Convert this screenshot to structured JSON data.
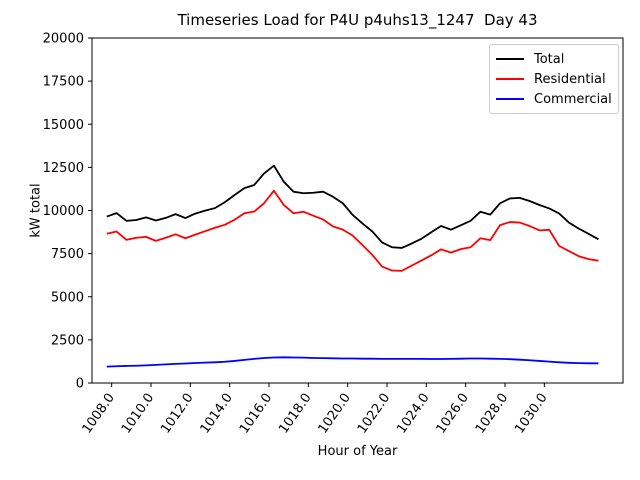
{
  "window": {
    "background": "#ffffff"
  },
  "chart_data": {
    "type": "line",
    "title": "Timeseries Load for P4U p4uhs13_1247  Day 43",
    "xlabel": "Hour of Year",
    "ylabel": "kW total",
    "xlim": [
      1007,
      1034
    ],
    "ylim": [
      0,
      20000
    ],
    "grid": false,
    "legend_position": "upper right",
    "x_tick_values": [
      1008,
      1010,
      1012,
      1014,
      1016,
      1018,
      1020,
      1022,
      1024,
      1026,
      1028,
      1030
    ],
    "x_tick_labels": [
      "1008.0",
      "1010.0",
      "1012.0",
      "1014.0",
      "1016.0",
      "1018.0",
      "1020.0",
      "1022.0",
      "1024.0",
      "1026.0",
      "1028.0",
      "1030.0"
    ],
    "y_tick_values": [
      0,
      2500,
      5000,
      7500,
      10000,
      12500,
      15000,
      17500,
      20000
    ],
    "y_tick_labels": [
      "0",
      "2500",
      "5000",
      "7500",
      "10000",
      "12500",
      "15000",
      "17500",
      "20000"
    ],
    "x": [
      1007.75,
      1008.25,
      1008.75,
      1009.25,
      1009.75,
      1010.25,
      1010.75,
      1011.25,
      1011.75,
      1012.25,
      1012.75,
      1013.25,
      1013.75,
      1014.25,
      1014.75,
      1015.25,
      1015.75,
      1016.25,
      1016.75,
      1017.25,
      1017.75,
      1018.25,
      1018.75,
      1019.25,
      1019.75,
      1020.25,
      1020.75,
      1021.25,
      1021.75,
      1022.25,
      1022.75,
      1023.25,
      1023.75,
      1024.25,
      1024.75,
      1025.25,
      1025.75,
      1026.25,
      1026.75,
      1027.25,
      1027.75,
      1028.25,
      1028.75,
      1029.25,
      1029.75,
      1030.25,
      1030.75,
      1031.25,
      1031.75,
      1032.25,
      1032.75
    ],
    "series": [
      {
        "name": "Total",
        "color": "#000000",
        "values": [
          9650,
          9850,
          9400,
          9450,
          9600,
          9420,
          9570,
          9790,
          9560,
          9820,
          9990,
          10140,
          10480,
          10900,
          11300,
          11480,
          12150,
          12600,
          11670,
          11090,
          11000,
          11030,
          11090,
          10800,
          10420,
          9750,
          9250,
          8790,
          8150,
          7870,
          7830,
          8080,
          8360,
          8740,
          9100,
          8890,
          9140,
          9400,
          9930,
          9760,
          10420,
          10700,
          10730,
          10550,
          10320,
          10120,
          9830,
          9300,
          8950,
          8650,
          8330
        ]
      },
      {
        "name": "Residential",
        "color": "#ff0000",
        "values": [
          8650,
          8780,
          8300,
          8420,
          8470,
          8240,
          8420,
          8620,
          8390,
          8600,
          8800,
          9000,
          9170,
          9460,
          9840,
          9940,
          10420,
          11150,
          10320,
          9840,
          9930,
          9700,
          9480,
          9080,
          8890,
          8550,
          8000,
          7430,
          6750,
          6520,
          6500,
          6800,
          7100,
          7400,
          7750,
          7560,
          7760,
          7870,
          8390,
          8280,
          9150,
          9330,
          9300,
          9100,
          8850,
          8880,
          7950,
          7650,
          7350,
          7180,
          7090
        ]
      },
      {
        "name": "Commercial",
        "color": "#0000ff",
        "values": [
          950,
          970,
          990,
          1000,
          1020,
          1050,
          1080,
          1110,
          1130,
          1160,
          1180,
          1200,
          1230,
          1280,
          1340,
          1400,
          1450,
          1480,
          1490,
          1480,
          1470,
          1450,
          1440,
          1430,
          1420,
          1420,
          1410,
          1410,
          1400,
          1400,
          1400,
          1400,
          1400,
          1390,
          1390,
          1400,
          1410,
          1420,
          1420,
          1410,
          1400,
          1380,
          1350,
          1320,
          1280,
          1240,
          1200,
          1170,
          1150,
          1140,
          1140
        ]
      }
    ]
  }
}
